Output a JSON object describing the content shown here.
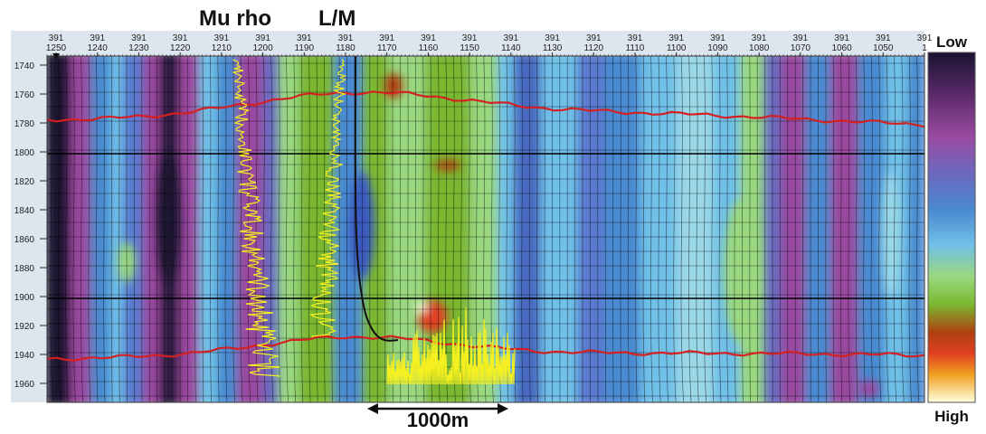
{
  "labels": {
    "log1": "Mu rho",
    "log2": "L/M",
    "scale_bar": "1000m",
    "colorbar_top": "Low",
    "colorbar_bottom": "High"
  },
  "axes": {
    "top_prefix": "391",
    "top_ticks": [
      "1250",
      "1240",
      "1230",
      "1220",
      "1210",
      "1200",
      "1190",
      "1180",
      "1170",
      "1160",
      "1150",
      "1140",
      "1130",
      "1120",
      "1110",
      "1100",
      "1090",
      "1080",
      "1070",
      "1060",
      "1050",
      "1"
    ],
    "left_ticks": [
      "1740",
      "1760",
      "1780",
      "1800",
      "1820",
      "1840",
      "1860",
      "1880",
      "1900",
      "1920",
      "1940",
      "1960"
    ]
  },
  "colors": {
    "horizon": "#d42020",
    "log_trace": "#f6f020",
    "well_path": "#111111",
    "colorbar": [
      "#1a1230",
      "#5a2a6a",
      "#9a4aa0",
      "#6a6ac0",
      "#4a8ad0",
      "#70c0e8",
      "#9ad880",
      "#7ab830",
      "#b04010",
      "#e04020",
      "#f0a020",
      "#ffffe0"
    ]
  }
}
